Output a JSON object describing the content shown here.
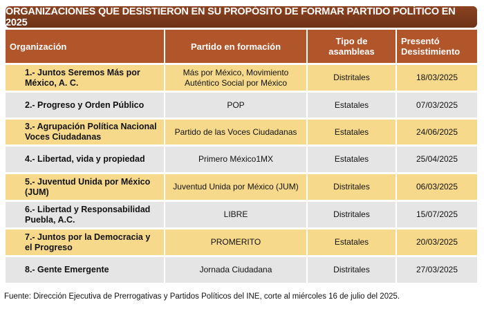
{
  "title": "ORGANIZACIONES QUE DESISTIERON EN SU PROPÓSITO DE FORMAR PARTIDO POLÍTICO EN 2025",
  "headers": [
    "Organización",
    "Partido en formación",
    "Tipo de asambleas",
    "Presentó Desistimiento"
  ],
  "rows": [
    {
      "org": "1.- Juntos Seremos Más por México, A. C.",
      "partido": "Más por México, Movimiento Auténtico Social por México",
      "tipo": "Distritales",
      "fecha": "18/03/2025"
    },
    {
      "org": "2.- Progreso y Orden Público",
      "partido": "POP",
      "tipo": "Estatales",
      "fecha": "07/03/2025"
    },
    {
      "org": "3.- Agrupación Política Nacional Voces Ciudadanas",
      "partido": "Partido de las Voces Ciudadanas",
      "tipo": "Estatales",
      "fecha": "24/06/2025"
    },
    {
      "org": "4.- Libertad, vida y propiedad",
      "partido": "Primero México1MX",
      "tipo": "Estatales",
      "fecha": "25/04/2025"
    },
    {
      "org": "5.- Juventud Unida por México (JUM)",
      "partido": "Juventud Unida por México (JUM)",
      "tipo": "Distritales",
      "fecha": "06/03/2025"
    },
    {
      "org": "6.- Libertad y Responsabilidad Puebla, A.C.",
      "partido": "LIBRE",
      "tipo": "Distritales",
      "fecha": "15/07/2025"
    },
    {
      "org": "7.- Juntos por la Democracia y el Progreso",
      "partido": "PROMERITO",
      "tipo": "Estatales",
      "fecha": "20/03/2025"
    },
    {
      "org": "8.- Gente Emergente",
      "partido": "Jornada Ciudadana",
      "tipo": "Distritales",
      "fecha": "27/03/2025"
    }
  ],
  "footer": "Fuente: Dirección Ejecutiva de Prerrogativas y Partidos Políticos del INE, corte al miércoles 16 de julio del 2025."
}
